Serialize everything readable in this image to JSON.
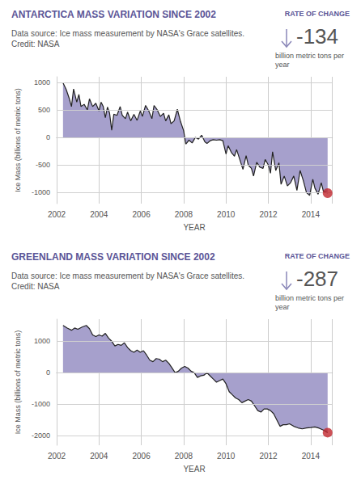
{
  "chart_data": [
    {
      "type": "area",
      "title": "ANTARCTICA MASS VARIATION SINCE 2002",
      "subtitle": "Data source: Ice mass measurement by NASA's Grace satellites.",
      "annotations": [
        "Credit: NASA"
      ],
      "rate_of_change": {
        "label": "RATE OF CHANGE",
        "value": -134,
        "unit": "billion metric tons per year"
      },
      "x_label": "YEAR",
      "y_label": "Ice Mass (billions of metric tons)",
      "x": [
        2002.3,
        2002.45,
        2002.6,
        2002.7,
        2002.8,
        2002.95,
        2003.05,
        2003.15,
        2003.3,
        2003.45,
        2003.55,
        2003.7,
        2003.85,
        2004.0,
        2004.1,
        2004.2,
        2004.3,
        2004.4,
        2004.5,
        2004.6,
        2004.7,
        2004.85,
        2005.0,
        2005.1,
        2005.25,
        2005.35,
        2005.5,
        2005.65,
        2005.8,
        2005.95,
        2006.05,
        2006.2,
        2006.35,
        2006.5,
        2006.6,
        2006.75,
        2006.9,
        2007.05,
        2007.15,
        2007.3,
        2007.4,
        2007.55,
        2007.7,
        2007.85,
        2008.0,
        2008.1,
        2008.25,
        2008.4,
        2008.55,
        2008.7,
        2008.85,
        2009.0,
        2009.1,
        2009.25,
        2009.4,
        2009.55,
        2009.7,
        2009.85,
        2010.0,
        2010.1,
        2010.25,
        2010.4,
        2010.5,
        2010.65,
        2010.8,
        2010.95,
        2011.05,
        2011.2,
        2011.3,
        2011.45,
        2011.6,
        2011.75,
        2011.85,
        2012.0,
        2012.1,
        2012.2,
        2012.35,
        2012.5,
        2012.6,
        2012.75,
        2012.9,
        2013.05,
        2013.2,
        2013.35,
        2013.5,
        2013.65,
        2013.8,
        2013.95,
        2014.1,
        2014.2,
        2014.35,
        2014.5,
        2014.6,
        2014.8
      ],
      "values": [
        990,
        870,
        700,
        560,
        880,
        640,
        780,
        560,
        600,
        500,
        700,
        560,
        620,
        480,
        640,
        560,
        360,
        550,
        440,
        130,
        420,
        400,
        560,
        400,
        340,
        460,
        300,
        420,
        310,
        480,
        380,
        580,
        480,
        340,
        580,
        500,
        380,
        440,
        300,
        410,
        250,
        300,
        510,
        290,
        120,
        -120,
        -50,
        -100,
        0,
        -30,
        40,
        -80,
        -110,
        -60,
        -40,
        -50,
        -40,
        -60,
        -300,
        -150,
        -270,
        -340,
        -220,
        -400,
        -580,
        -330,
        -500,
        -560,
        -700,
        -450,
        -540,
        -560,
        -400,
        -500,
        -650,
        -260,
        -600,
        -460,
        -850,
        -700,
        -880,
        -820,
        -700,
        -960,
        -600,
        -780,
        -1000,
        -1050,
        -760,
        -920,
        -1030,
        -820,
        -980,
        -1010
      ],
      "color": "#a6a0cc",
      "xlim": [
        2002,
        2015
      ],
      "xticks": [
        2002,
        2004,
        2006,
        2008,
        2010,
        2012,
        2014
      ],
      "ylim": [
        -1200,
        1100
      ],
      "yticks": [
        -1000,
        -500,
        0,
        500,
        1000
      ],
      "grid": true
    },
    {
      "type": "area",
      "title": "GREENLAND MASS VARIATION SINCE 2002",
      "subtitle": "Data source: Ice mass measurement by NASA's Grace satellites.",
      "annotations": [
        "Credit: NASA"
      ],
      "rate_of_change": {
        "label": "RATE OF CHANGE",
        "value": -287,
        "unit": "billion metric tons per year"
      },
      "x_label": "YEAR",
      "y_label": "Ice Mass (billions of metric tons)",
      "x": [
        2002.3,
        2002.5,
        2002.7,
        2002.85,
        2003.0,
        2003.2,
        2003.4,
        2003.55,
        2003.7,
        2003.85,
        2004.0,
        2004.15,
        2004.3,
        2004.45,
        2004.6,
        2004.75,
        2004.9,
        2005.05,
        2005.2,
        2005.35,
        2005.5,
        2005.65,
        2005.8,
        2005.95,
        2006.1,
        2006.25,
        2006.4,
        2006.55,
        2006.7,
        2006.85,
        2007.0,
        2007.15,
        2007.3,
        2007.45,
        2007.6,
        2007.75,
        2007.9,
        2008.05,
        2008.2,
        2008.35,
        2008.5,
        2008.65,
        2008.8,
        2008.95,
        2009.1,
        2009.25,
        2009.4,
        2009.55,
        2009.7,
        2009.85,
        2010.0,
        2010.15,
        2010.3,
        2010.45,
        2010.6,
        2010.75,
        2010.9,
        2011.05,
        2011.2,
        2011.35,
        2011.5,
        2011.65,
        2011.8,
        2011.95,
        2012.1,
        2012.25,
        2012.4,
        2012.55,
        2012.7,
        2012.85,
        2013.0,
        2013.2,
        2013.4,
        2013.6,
        2013.8,
        2014.0,
        2014.2,
        2014.4,
        2014.6,
        2014.8
      ],
      "values": [
        1500,
        1420,
        1350,
        1420,
        1380,
        1450,
        1500,
        1400,
        1200,
        1150,
        1200,
        1160,
        1250,
        1100,
        1000,
        850,
        900,
        870,
        950,
        800,
        700,
        650,
        720,
        650,
        700,
        560,
        400,
        350,
        450,
        430,
        350,
        400,
        300,
        150,
        0,
        50,
        150,
        200,
        150,
        50,
        0,
        -150,
        -100,
        -80,
        0,
        -100,
        -200,
        -300,
        -250,
        -200,
        -350,
        -600,
        -700,
        -800,
        -850,
        -950,
        -900,
        -850,
        -900,
        -1050,
        -1200,
        -1250,
        -1150,
        -1150,
        -1200,
        -1300,
        -1500,
        -1700,
        -1650,
        -1650,
        -1620,
        -1700,
        -1750,
        -1780,
        -1750,
        -1740,
        -1720,
        -1760,
        -1820,
        -1900
      ],
      "color": "#a6a0cc",
      "xlim": [
        2002,
        2015
      ],
      "xticks": [
        2002,
        2004,
        2006,
        2008,
        2010,
        2012,
        2014
      ],
      "ylim": [
        -2300,
        1700
      ],
      "yticks": [
        -2000,
        -1000,
        0,
        1000
      ],
      "grid": true
    }
  ]
}
